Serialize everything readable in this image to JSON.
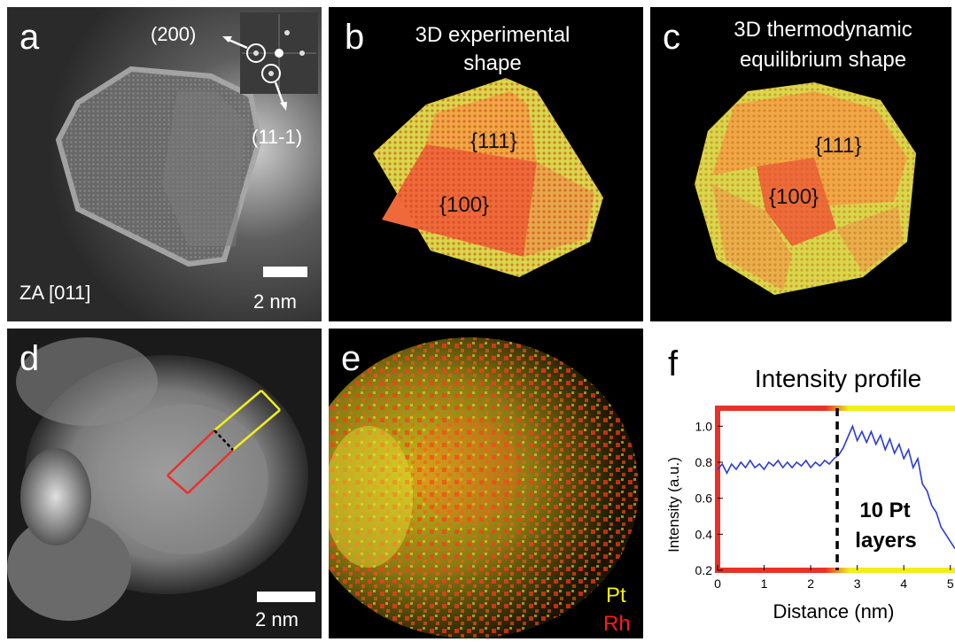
{
  "panels": {
    "a": {
      "label": "a",
      "fft_spot_1": "(200)",
      "fft_spot_2": "(11-1)",
      "zone_axis": "ZA [011]",
      "scale_bar": "2 nm"
    },
    "b": {
      "label": "b",
      "title_line1": "3D experimental",
      "title_line2": "shape",
      "facet_top": "{111}",
      "facet_front": "{100}"
    },
    "c": {
      "label": "c",
      "title_line1": "3D thermodynamic",
      "title_line2": "equilibrium shape",
      "facet_top": "{111}",
      "facet_front": "{100}"
    },
    "d": {
      "label": "d",
      "scale_bar": "2 nm"
    },
    "e": {
      "label": "e",
      "legend_pt": "Pt",
      "legend_rh": "Rh",
      "color_pt": "#f5f000",
      "color_rh": "#ff1a1a"
    },
    "f": {
      "label": "f"
    }
  },
  "chart_data": {
    "type": "line",
    "title": "Intensity profile",
    "xlabel": "Distance (nm)",
    "ylabel": "Intensity (a.u.)",
    "xlim": [
      0,
      5.1
    ],
    "ylim": [
      0.2,
      1.1
    ],
    "xticks": [
      "0",
      "1",
      "2",
      "3",
      "4",
      "5"
    ],
    "yticks": [
      "0.2",
      "0.4",
      "0.6",
      "0.8",
      "1.0"
    ],
    "divider_x": 2.57,
    "annotation_line1": "10 Pt",
    "annotation_line2": "layers",
    "rh_color": "#e8312a",
    "pt_color": "#f2ee1a",
    "line_color": "#2a3ad6",
    "series": [
      {
        "x": [
          0,
          0.1,
          0.2,
          0.3,
          0.4,
          0.5,
          0.6,
          0.7,
          0.8,
          0.9,
          1.0,
          1.1,
          1.2,
          1.3,
          1.4,
          1.5,
          1.6,
          1.7,
          1.8,
          1.9,
          2.0,
          2.1,
          2.2,
          2.3,
          2.4,
          2.5,
          2.6,
          2.7,
          2.8,
          2.9,
          3.0,
          3.1,
          3.2,
          3.3,
          3.4,
          3.5,
          3.6,
          3.7,
          3.8,
          3.9,
          4.0,
          4.1,
          4.2,
          4.3,
          4.4,
          4.5,
          4.6,
          4.7,
          4.8,
          4.9,
          5.0,
          5.1
        ],
        "y": [
          0.76,
          0.79,
          0.74,
          0.79,
          0.76,
          0.8,
          0.77,
          0.81,
          0.77,
          0.79,
          0.76,
          0.8,
          0.78,
          0.81,
          0.77,
          0.8,
          0.77,
          0.8,
          0.78,
          0.81,
          0.77,
          0.8,
          0.78,
          0.81,
          0.79,
          0.82,
          0.84,
          0.88,
          0.94,
          1.0,
          0.92,
          0.97,
          0.91,
          0.97,
          0.9,
          0.95,
          0.87,
          0.93,
          0.85,
          0.9,
          0.82,
          0.87,
          0.77,
          0.82,
          0.68,
          0.64,
          0.56,
          0.52,
          0.44,
          0.4,
          0.36,
          0.32
        ]
      }
    ]
  }
}
